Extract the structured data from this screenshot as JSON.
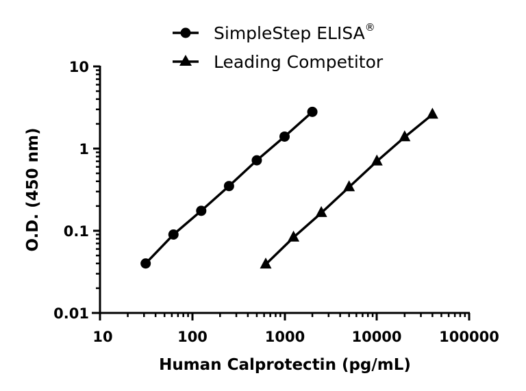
{
  "chart_data": {
    "type": "line",
    "title": "",
    "xlabel": "Human Calprotectin (pg/mL)",
    "ylabel": "O.D. (450 nm)",
    "xscale": "log",
    "yscale": "log",
    "xlim": [
      10,
      100000
    ],
    "ylim": [
      0.01,
      10
    ],
    "xticks": [
      10,
      100,
      1000,
      10000,
      100000
    ],
    "xtick_labels": [
      "10",
      "100",
      "1000",
      "10000",
      "100000"
    ],
    "yticks": [
      0.01,
      0.1,
      1,
      10
    ],
    "ytick_labels": [
      "0.01",
      "0.1",
      "1",
      "10"
    ],
    "grid": false,
    "legend_position": "top",
    "series": [
      {
        "name": "SimpleStep ELISA®",
        "marker": "circle",
        "color": "#000000",
        "x": [
          31.25,
          62.5,
          125,
          250,
          500,
          1000,
          2000
        ],
        "y": [
          0.04,
          0.09,
          0.175,
          0.35,
          0.72,
          1.4,
          2.8
        ]
      },
      {
        "name": "Leading Competitor",
        "marker": "triangle",
        "color": "#000000",
        "x": [
          625,
          1250,
          2500,
          5000,
          10000,
          20000,
          40000
        ],
        "y": [
          0.039,
          0.083,
          0.165,
          0.34,
          0.7,
          1.38,
          2.6
        ]
      }
    ]
  },
  "legend": {
    "items": [
      {
        "label": "SimpleStep ELISA",
        "superscript": "®",
        "marker": "circle"
      },
      {
        "label": "Leading Competitor",
        "superscript": "",
        "marker": "triangle"
      }
    ]
  },
  "axes": {
    "x_title": "Human Calprotectin (pg/mL)",
    "y_title": "O.D. (450 nm)",
    "x_tick_labels": [
      "10",
      "100",
      "1000",
      "10000",
      "100000"
    ],
    "y_tick_labels": [
      "10",
      "1",
      "0.1",
      "0.01"
    ]
  }
}
